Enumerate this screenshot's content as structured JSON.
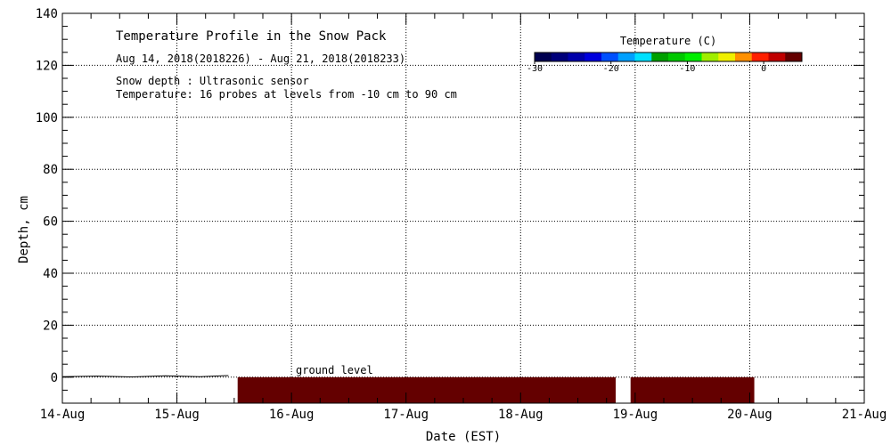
{
  "chart_data": {
    "type": "heatmap",
    "title": "Temperature Profile in the Snow Pack",
    "subtitle": "Aug 14, 2018(2018226) - Aug 21, 2018(2018233)",
    "notes": [
      "Snow depth : Ultrasonic sensor",
      "Temperature: 16 probes at levels from -10 cm to 90 cm"
    ],
    "xlabel": "Date (EST)",
    "ylabel": "Depth, cm",
    "x_ticks": [
      "14-Aug",
      "15-Aug",
      "16-Aug",
      "17-Aug",
      "18-Aug",
      "19-Aug",
      "20-Aug",
      "21-Aug"
    ],
    "xlim": [
      0,
      7
    ],
    "ylim": [
      -10,
      140
    ],
    "y_ticks": [
      0,
      20,
      40,
      60,
      80,
      100,
      120,
      140
    ],
    "grid": true,
    "annotation": "ground level",
    "colorbar": {
      "title": "Temperature (C)",
      "range": [
        -30,
        5
      ],
      "tick_labels": [
        "-30",
        "-20",
        "-10",
        "0"
      ],
      "tick_values": [
        -30,
        -20,
        -10,
        0
      ],
      "colors": [
        "#000050",
        "#00007a",
        "#0000aa",
        "#0000dd",
        "#0050ff",
        "#00a0ff",
        "#00e0ff",
        "#00a000",
        "#00c800",
        "#00ee00",
        "#a0ee00",
        "#f0f000",
        "#ff9000",
        "#ff2000",
        "#c00000",
        "#640000"
      ]
    },
    "fill_color": "#640000",
    "temperature_blocks": [
      {
        "x_start": 1.53,
        "x_end": 4.83,
        "depth_top": 0,
        "depth_bottom": -10
      },
      {
        "x_start": 4.96,
        "x_end": 6.04,
        "depth_top": 0,
        "depth_bottom": -10
      }
    ],
    "snow_depth_trace": [
      {
        "x": 0.0,
        "y": 0.2
      },
      {
        "x": 0.3,
        "y": 0.4
      },
      {
        "x": 0.6,
        "y": 0.1
      },
      {
        "x": 0.9,
        "y": 0.5
      },
      {
        "x": 1.2,
        "y": 0.2
      },
      {
        "x": 1.45,
        "y": 0.6
      }
    ]
  }
}
